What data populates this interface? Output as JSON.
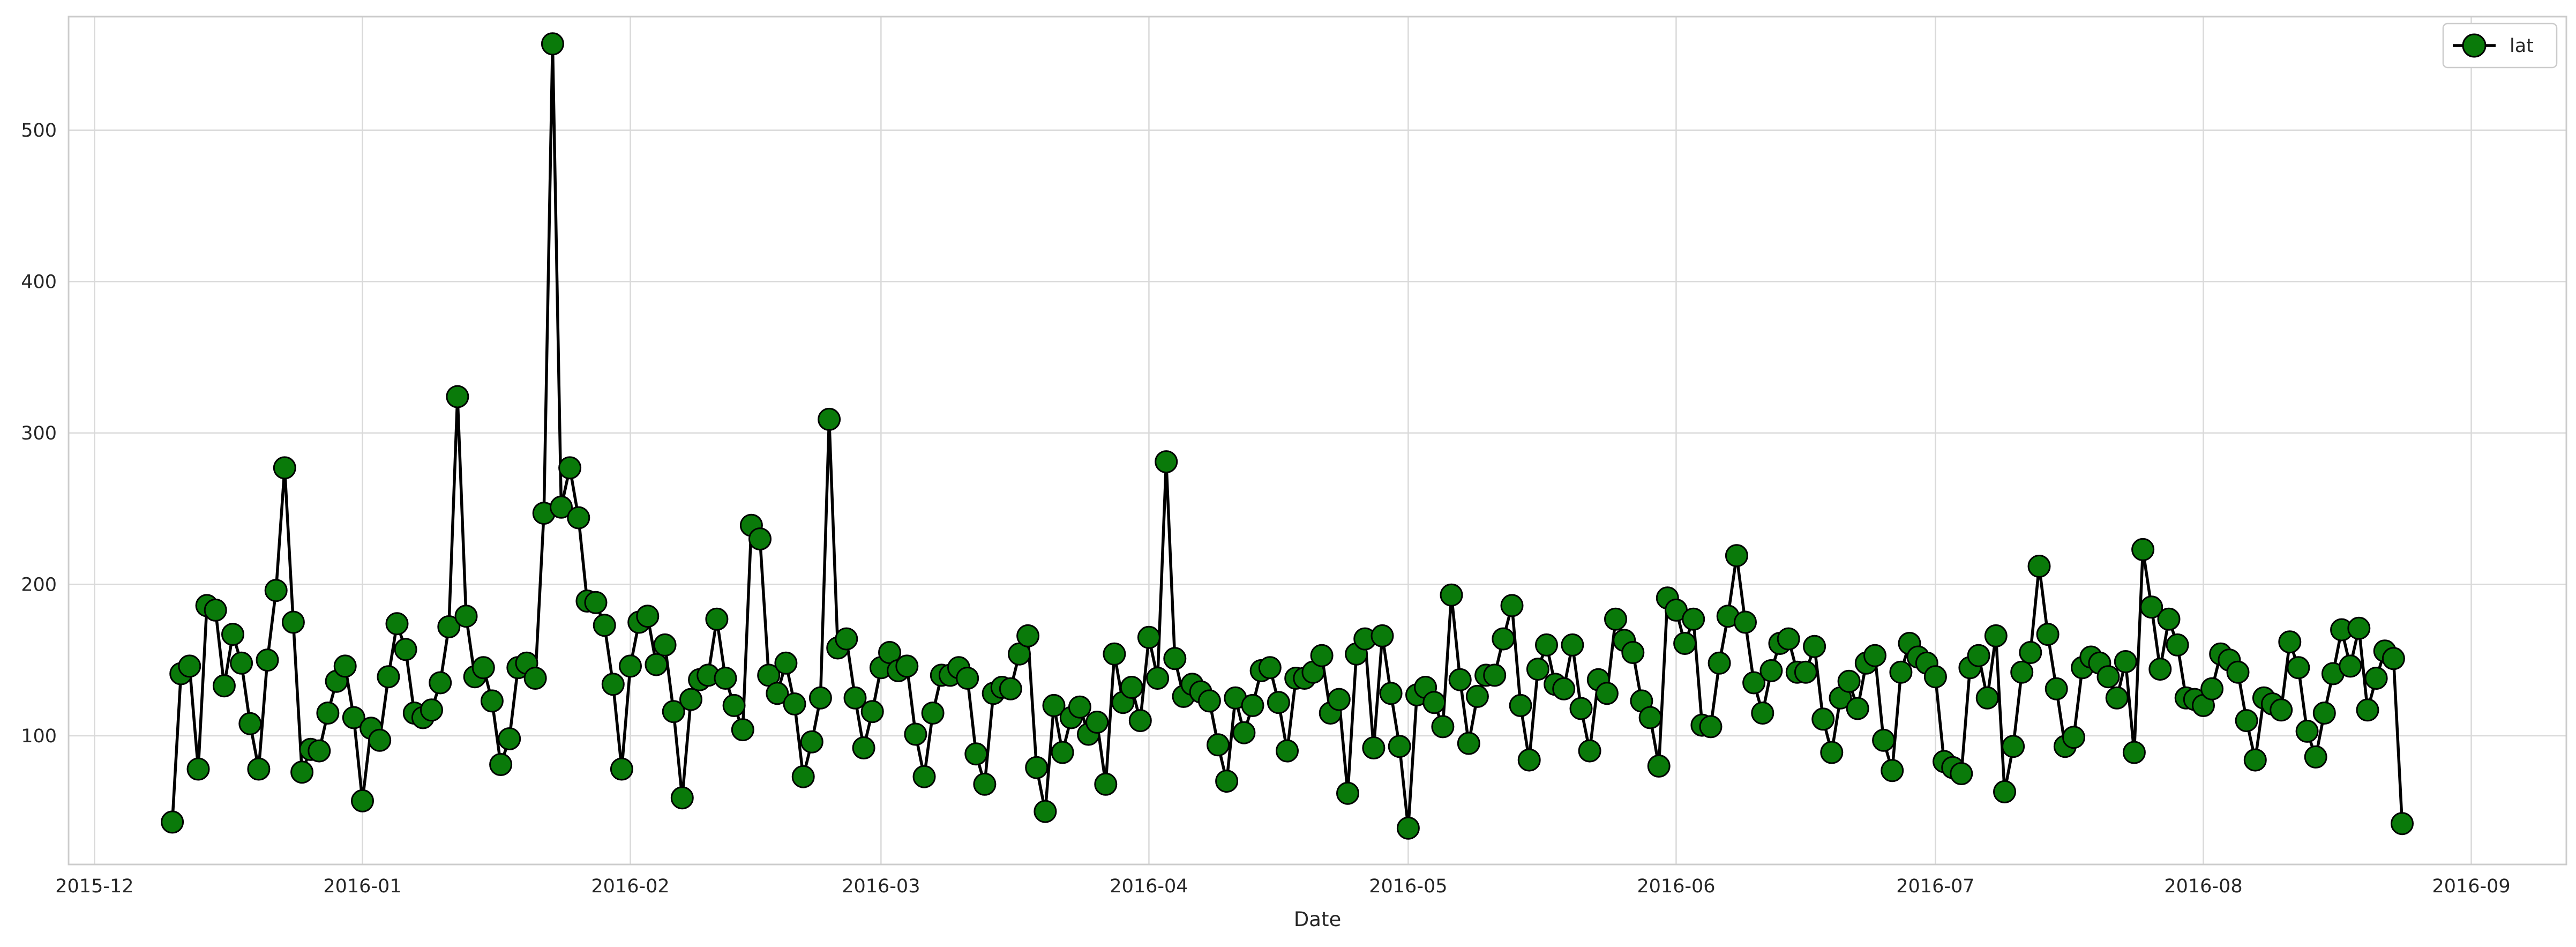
{
  "chart_data": {
    "type": "line",
    "title": "",
    "xlabel": "Date",
    "ylabel": "",
    "x_axis": {
      "type": "date",
      "range": [
        "2015-11-28",
        "2016-09-12"
      ],
      "ticks": [
        "2015-12-01",
        "2016-01-01",
        "2016-02-01",
        "2016-03-01",
        "2016-04-01",
        "2016-05-01",
        "2016-06-01",
        "2016-07-01",
        "2016-08-01",
        "2016-09-01"
      ],
      "tick_labels": [
        "2015-12",
        "2016-01",
        "2016-02",
        "2016-03",
        "2016-04",
        "2016-05",
        "2016-06",
        "2016-07",
        "2016-08",
        "2016-09"
      ]
    },
    "y_axis": {
      "range": [
        15,
        575
      ],
      "ticks": [
        100,
        200,
        300,
        400,
        500
      ],
      "tick_labels": [
        "100",
        "200",
        "300",
        "400",
        "500"
      ]
    },
    "grid": true,
    "legend": {
      "position": "top-right",
      "entries": [
        "lat"
      ]
    },
    "colors": {
      "line": "#000000",
      "marker_fill": "#0a7a0a",
      "marker_edge": "#000000",
      "grid": "#d9d9d9",
      "spine": "#cccccc"
    },
    "series": [
      {
        "name": "lat",
        "start_date": "2015-12-10",
        "values": [
          43,
          141,
          146,
          78,
          186,
          183,
          133,
          167,
          148,
          108,
          78,
          150,
          196,
          277,
          175,
          76,
          91,
          90,
          115,
          136,
          146,
          112,
          57,
          105,
          97,
          139,
          174,
          157,
          115,
          112,
          117,
          135,
          172,
          324,
          179,
          139,
          145,
          123,
          81,
          98,
          145,
          148,
          138,
          247,
          557,
          251,
          277,
          244,
          189,
          188,
          173,
          134,
          78,
          146,
          175,
          179,
          147,
          160,
          116,
          59,
          124,
          137,
          140,
          177,
          138,
          120,
          104,
          239,
          230,
          140,
          128,
          148,
          121,
          73,
          96,
          125,
          309,
          158,
          164,
          125,
          92,
          116,
          145,
          155,
          143,
          146,
          101,
          73,
          115,
          140,
          140,
          145,
          138,
          88,
          68,
          128,
          132,
          131,
          154,
          166,
          79,
          50,
          120,
          89,
          112,
          119,
          101,
          109,
          68,
          154,
          122,
          132,
          110,
          165,
          138,
          281,
          151,
          126,
          134,
          129,
          123,
          94,
          70,
          125,
          102,
          120,
          143,
          145,
          122,
          90,
          138,
          138,
          142,
          153,
          115,
          124,
          62,
          154,
          164,
          92,
          166,
          128,
          93,
          39,
          127,
          132,
          122,
          106,
          193,
          137,
          95,
          126,
          140,
          140,
          164,
          186,
          120,
          84,
          144,
          160,
          134,
          131,
          160,
          118,
          90,
          137,
          128,
          177,
          163,
          155,
          123,
          112,
          80,
          191,
          183,
          161,
          177,
          107,
          106,
          148,
          179,
          219,
          175,
          135,
          115,
          143,
          161,
          164,
          142,
          142,
          159,
          111,
          89,
          125,
          136,
          118,
          148,
          153,
          97,
          77,
          142,
          161,
          152,
          148,
          139,
          83,
          79,
          75,
          145,
          153,
          125,
          166,
          63,
          93,
          142,
          155,
          212,
          167,
          131,
          93,
          99,
          145,
          152,
          148,
          139,
          125,
          149,
          89,
          223,
          185,
          144,
          177,
          160,
          125,
          124,
          120,
          131,
          154,
          150,
          142,
          110,
          84,
          125,
          121,
          117,
          162,
          145,
          103,
          86,
          115,
          141,
          170,
          146,
          171,
          117,
          138,
          156,
          151,
          42
        ]
      }
    ]
  }
}
